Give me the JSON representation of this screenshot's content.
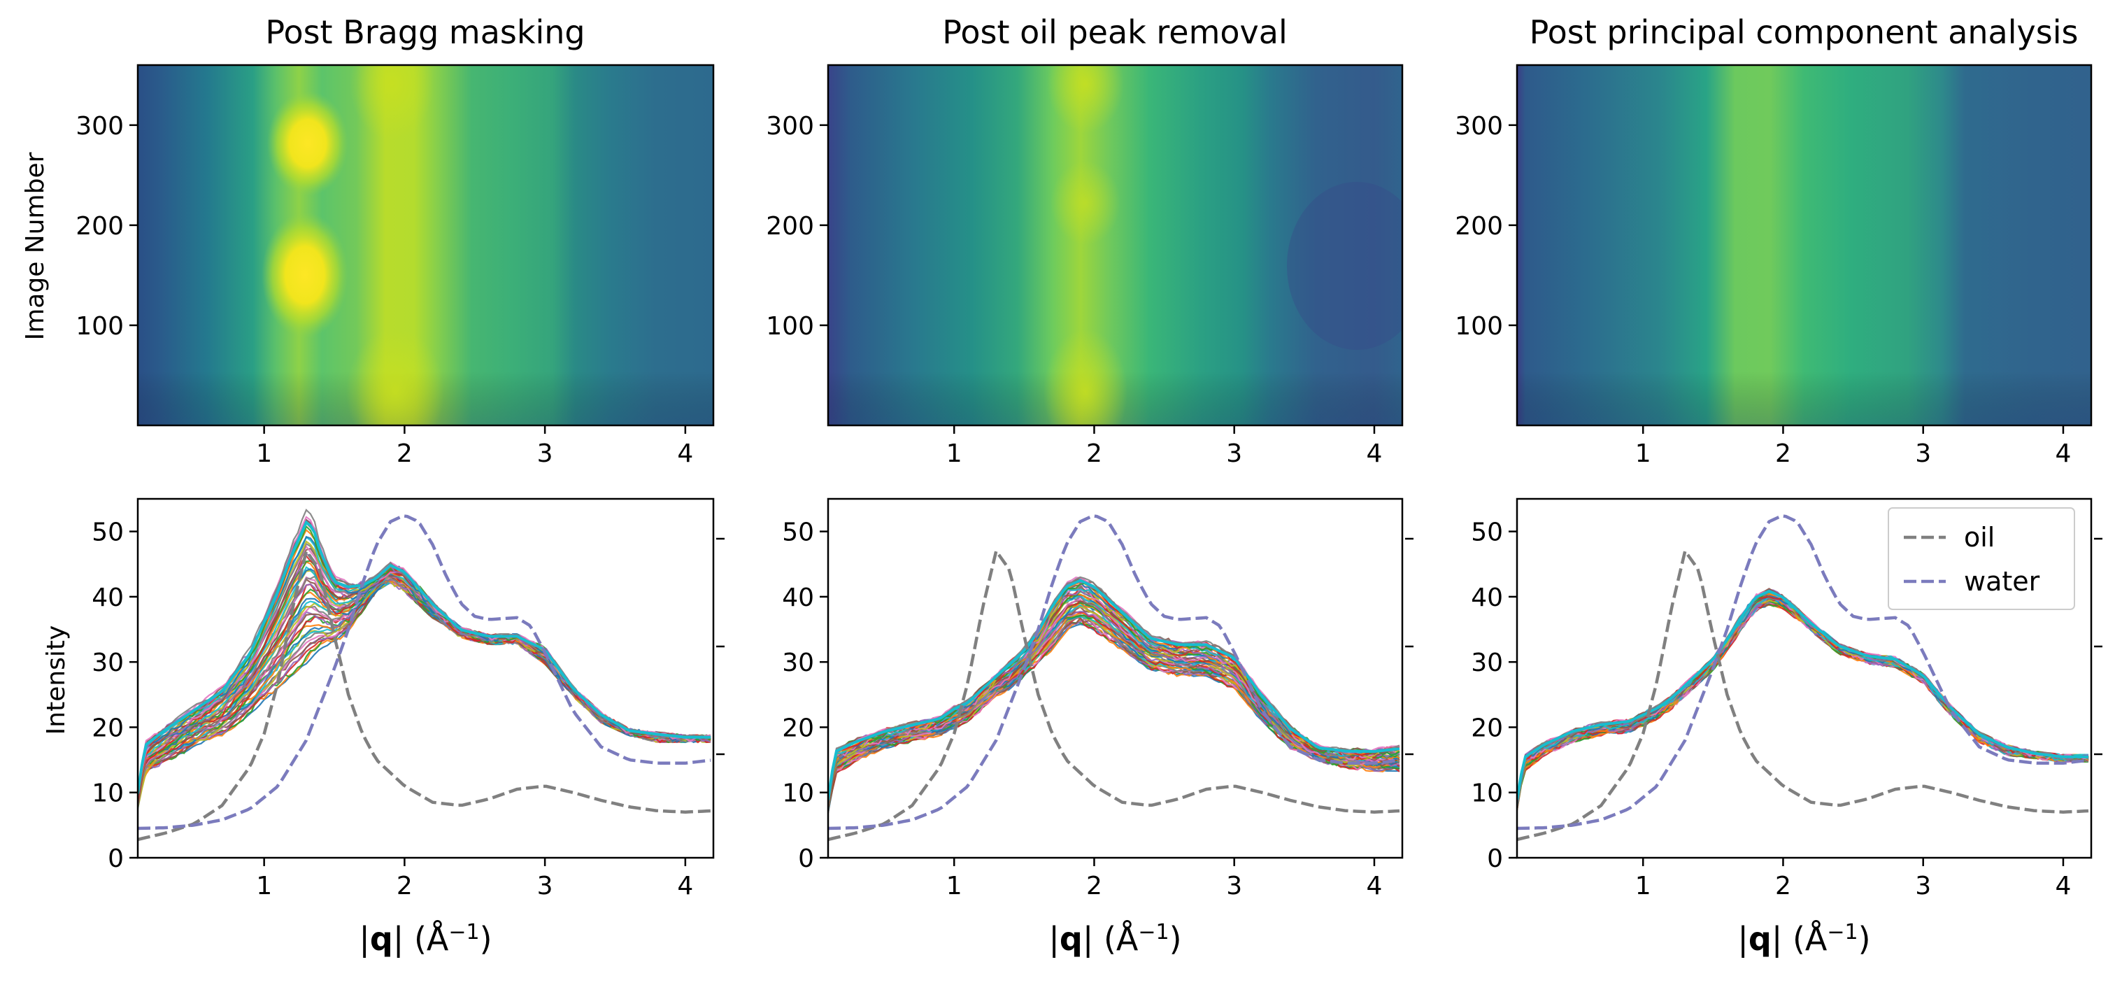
{
  "figure": {
    "xlabel_parts": [
      "|",
      "q",
      "| (Å",
      "−1",
      ")"
    ],
    "legend": {
      "oil": "oil",
      "water": "water"
    }
  },
  "colors": {
    "oil": "#808080",
    "water": "#7b7bbd",
    "mean": "#17becf",
    "palette": [
      "#1f77b4",
      "#ff7f0e",
      "#2ca02c",
      "#d62728",
      "#9467bd",
      "#8c564b",
      "#e377c2",
      "#7f7f7f",
      "#bcbd22",
      "#17becf"
    ]
  },
  "chart_data": [
    {
      "type": "heatmap",
      "title": "Post Bragg masking",
      "ylabel": "Image Number",
      "xlabel": "",
      "xlim": [
        0.1,
        4.2
      ],
      "ylim": [
        0,
        360
      ],
      "xticks": [
        1,
        2,
        3,
        4
      ],
      "yticks": [
        100,
        200,
        300
      ],
      "colormap": "viridis",
      "intensity_range": [
        4,
        53
      ],
      "features": "bright spots near |q|≈1.3 at image ~150 and ~280; vertical band at |q|≈1.9"
    },
    {
      "type": "heatmap",
      "title": "Post oil peak removal",
      "ylabel": "",
      "xlabel": "",
      "xlim": [
        0.1,
        4.2
      ],
      "ylim": [
        0,
        360
      ],
      "xticks": [
        1,
        2,
        3,
        4
      ],
      "yticks": [
        100,
        200,
        300
      ],
      "colormap": "viridis",
      "intensity_range": [
        4,
        45
      ]
    },
    {
      "type": "heatmap",
      "title": "Post principal component analysis",
      "ylabel": "",
      "xlabel": "",
      "xlim": [
        0.1,
        4.2
      ],
      "ylim": [
        0,
        360
      ],
      "xticks": [
        1,
        2,
        3,
        4
      ],
      "yticks": [
        100,
        200,
        300
      ],
      "colormap": "viridis",
      "intensity_range": [
        4,
        45
      ]
    },
    {
      "type": "line",
      "ylabel": "Intensity",
      "xlim": [
        0.1,
        4.2
      ],
      "ylim": [
        0,
        55
      ],
      "xticks": [
        1,
        2,
        3,
        4
      ],
      "yticks": [
        0,
        10,
        20,
        30,
        40,
        50
      ],
      "series": [
        {
          "name": "oil",
          "style": "dashed",
          "x": [
            0.1,
            0.3,
            0.5,
            0.7,
            0.9,
            1.0,
            1.1,
            1.2,
            1.3,
            1.4,
            1.5,
            1.6,
            1.7,
            1.8,
            2.0,
            2.2,
            2.4,
            2.6,
            2.8,
            3.0,
            3.2,
            3.4,
            3.6,
            3.8,
            4.0,
            4.2
          ],
          "y": [
            2.8,
            3.8,
            5.2,
            8,
            14,
            19,
            27,
            38,
            47,
            44,
            34,
            25,
            19,
            15,
            11,
            8.5,
            8,
            9,
            10.5,
            11,
            10,
            8.8,
            7.8,
            7.2,
            7,
            7.2
          ]
        },
        {
          "name": "water",
          "style": "dashed",
          "x": [
            0.1,
            0.3,
            0.5,
            0.7,
            0.9,
            1.1,
            1.3,
            1.5,
            1.6,
            1.7,
            1.8,
            1.9,
            2.0,
            2.1,
            2.2,
            2.3,
            2.4,
            2.5,
            2.6,
            2.8,
            2.9,
            3.0,
            3.1,
            3.2,
            3.4,
            3.6,
            3.8,
            4.0,
            4.2
          ],
          "y": [
            4.5,
            4.6,
            5,
            5.8,
            7.5,
            11,
            18,
            29,
            35,
            42,
            48,
            51.5,
            52.5,
            51.5,
            48,
            43,
            39,
            37,
            36.5,
            36.8,
            35.5,
            31.5,
            27,
            22.5,
            17,
            15,
            14.5,
            14.5,
            15
          ]
        }
      ],
      "image_curves": {
        "count": 360,
        "x": [
          0.1,
          0.15,
          0.3,
          0.5,
          0.7,
          0.9,
          1.0,
          1.1,
          1.2,
          1.3,
          1.35,
          1.4,
          1.5,
          1.6,
          1.7,
          1.8,
          1.9,
          2.0,
          2.2,
          2.4,
          2.6,
          2.8,
          3.0,
          3.2,
          3.4,
          3.6,
          3.8,
          4.0,
          4.2
        ],
        "low": [
          7.5,
          13,
          15,
          17,
          19,
          22,
          24,
          26,
          28,
          30,
          31,
          32,
          33,
          35,
          38,
          41,
          42,
          41,
          37,
          34,
          33,
          33,
          30,
          25,
          21,
          19,
          18,
          18,
          18
        ],
        "high": [
          10,
          17.5,
          20,
          23,
          26,
          32,
          37,
          42,
          48,
          53,
          52,
          48,
          43,
          42,
          42,
          43,
          45,
          44,
          39,
          35,
          34,
          34,
          32,
          26,
          22,
          19.5,
          19,
          18.5,
          18.5
        ]
      }
    },
    {
      "type": "line",
      "ylabel": "",
      "xlim": [
        0.1,
        4.2
      ],
      "ylim": [
        0,
        55
      ],
      "xticks": [
        1,
        2,
        3,
        4
      ],
      "yticks": [
        0,
        10,
        20,
        30,
        40,
        50
      ],
      "series": [
        {
          "name": "oil",
          "style": "dashed",
          "x": [
            0.1,
            0.3,
            0.5,
            0.7,
            0.9,
            1.0,
            1.1,
            1.2,
            1.3,
            1.4,
            1.5,
            1.6,
            1.7,
            1.8,
            2.0,
            2.2,
            2.4,
            2.6,
            2.8,
            3.0,
            3.2,
            3.4,
            3.6,
            3.8,
            4.0,
            4.2
          ],
          "y": [
            2.8,
            3.8,
            5.2,
            8,
            14,
            19,
            27,
            38,
            47,
            44,
            34,
            25,
            19,
            15,
            11,
            8.5,
            8,
            9,
            10.5,
            11,
            10,
            8.8,
            7.8,
            7.2,
            7,
            7.2
          ]
        },
        {
          "name": "water",
          "style": "dashed",
          "x": [
            0.1,
            0.3,
            0.5,
            0.7,
            0.9,
            1.1,
            1.3,
            1.5,
            1.6,
            1.7,
            1.8,
            1.9,
            2.0,
            2.1,
            2.2,
            2.3,
            2.4,
            2.5,
            2.6,
            2.8,
            2.9,
            3.0,
            3.1,
            3.2,
            3.4,
            3.6,
            3.8,
            4.0,
            4.2
          ],
          "y": [
            4.5,
            4.6,
            5,
            5.8,
            7.5,
            11,
            18,
            29,
            35,
            42,
            48,
            51.5,
            52.5,
            51.5,
            48,
            43,
            39,
            37,
            36.5,
            36.8,
            35.5,
            31.5,
            27,
            22.5,
            17,
            15,
            14.5,
            14.5,
            15
          ]
        }
      ],
      "image_curves": {
        "count": 360,
        "x": [
          0.1,
          0.15,
          0.3,
          0.5,
          0.7,
          0.9,
          1.0,
          1.1,
          1.2,
          1.3,
          1.4,
          1.5,
          1.6,
          1.7,
          1.8,
          1.9,
          2.0,
          2.2,
          2.4,
          2.6,
          2.8,
          3.0,
          3.2,
          3.4,
          3.6,
          3.8,
          4.0,
          4.2
        ],
        "low": [
          7,
          13,
          15,
          17,
          18,
          19,
          20,
          21,
          23,
          25,
          26,
          28,
          30,
          32,
          35,
          36,
          35,
          32,
          29,
          28,
          28,
          26,
          21,
          17,
          15,
          14,
          13.5,
          13.5
        ],
        "high": [
          9,
          16.5,
          18,
          19.5,
          20.5,
          21.5,
          23,
          24,
          26,
          28,
          30,
          32,
          35,
          39,
          42,
          43,
          42,
          38,
          34,
          33,
          33,
          31,
          25,
          20,
          17,
          16.5,
          16.5,
          17
        ]
      }
    },
    {
      "type": "line",
      "ylabel": "",
      "xlim": [
        0.1,
        4.2
      ],
      "ylim": [
        0,
        55
      ],
      "xticks": [
        1,
        2,
        3,
        4
      ],
      "yticks": [
        0,
        10,
        20,
        30,
        40,
        50
      ],
      "legend_position": "top-right",
      "series": [
        {
          "name": "oil",
          "style": "dashed",
          "x": [
            0.1,
            0.3,
            0.5,
            0.7,
            0.9,
            1.0,
            1.1,
            1.2,
            1.3,
            1.4,
            1.5,
            1.6,
            1.7,
            1.8,
            2.0,
            2.2,
            2.4,
            2.6,
            2.8,
            3.0,
            3.2,
            3.4,
            3.6,
            3.8,
            4.0,
            4.2
          ],
          "y": [
            2.8,
            3.8,
            5.2,
            8,
            14,
            19,
            27,
            38,
            47,
            44,
            34,
            25,
            19,
            15,
            11,
            8.5,
            8,
            9,
            10.5,
            11,
            10,
            8.8,
            7.8,
            7.2,
            7,
            7.2
          ]
        },
        {
          "name": "water",
          "style": "dashed",
          "x": [
            0.1,
            0.3,
            0.5,
            0.7,
            0.9,
            1.1,
            1.3,
            1.5,
            1.6,
            1.7,
            1.8,
            1.9,
            2.0,
            2.1,
            2.2,
            2.3,
            2.4,
            2.5,
            2.6,
            2.8,
            2.9,
            3.0,
            3.1,
            3.2,
            3.4,
            3.6,
            3.8,
            4.0,
            4.2
          ],
          "y": [
            4.5,
            4.6,
            5,
            5.8,
            7.5,
            11,
            18,
            29,
            35,
            42,
            48,
            51.5,
            52.5,
            51.5,
            48,
            43,
            39,
            37,
            36.5,
            36.8,
            35.5,
            31.5,
            27,
            22.5,
            17,
            15,
            14.5,
            14.5,
            15
          ]
        }
      ],
      "image_curves": {
        "count": 360,
        "x": [
          0.1,
          0.15,
          0.3,
          0.5,
          0.7,
          0.9,
          1.0,
          1.1,
          1.2,
          1.3,
          1.4,
          1.5,
          1.6,
          1.7,
          1.8,
          1.9,
          2.0,
          2.2,
          2.4,
          2.6,
          2.8,
          3.0,
          3.2,
          3.4,
          3.6,
          3.8,
          4.0,
          4.2
        ],
        "low": [
          7.5,
          13.5,
          16,
          18,
          19,
          19.5,
          20.5,
          21.5,
          23,
          25,
          27,
          29,
          32,
          35,
          38,
          39,
          38.5,
          35,
          31.5,
          30,
          29.5,
          27,
          22,
          18,
          16,
          15.5,
          15,
          15
        ],
        "high": [
          9,
          15.5,
          17.5,
          19.5,
          20.5,
          21,
          22,
          23,
          24.5,
          26.5,
          28.5,
          30.5,
          33.5,
          37,
          40,
          41,
          40,
          36,
          32.5,
          31,
          30.5,
          28,
          23,
          19,
          17,
          16,
          15.5,
          15.5
        ]
      }
    }
  ]
}
